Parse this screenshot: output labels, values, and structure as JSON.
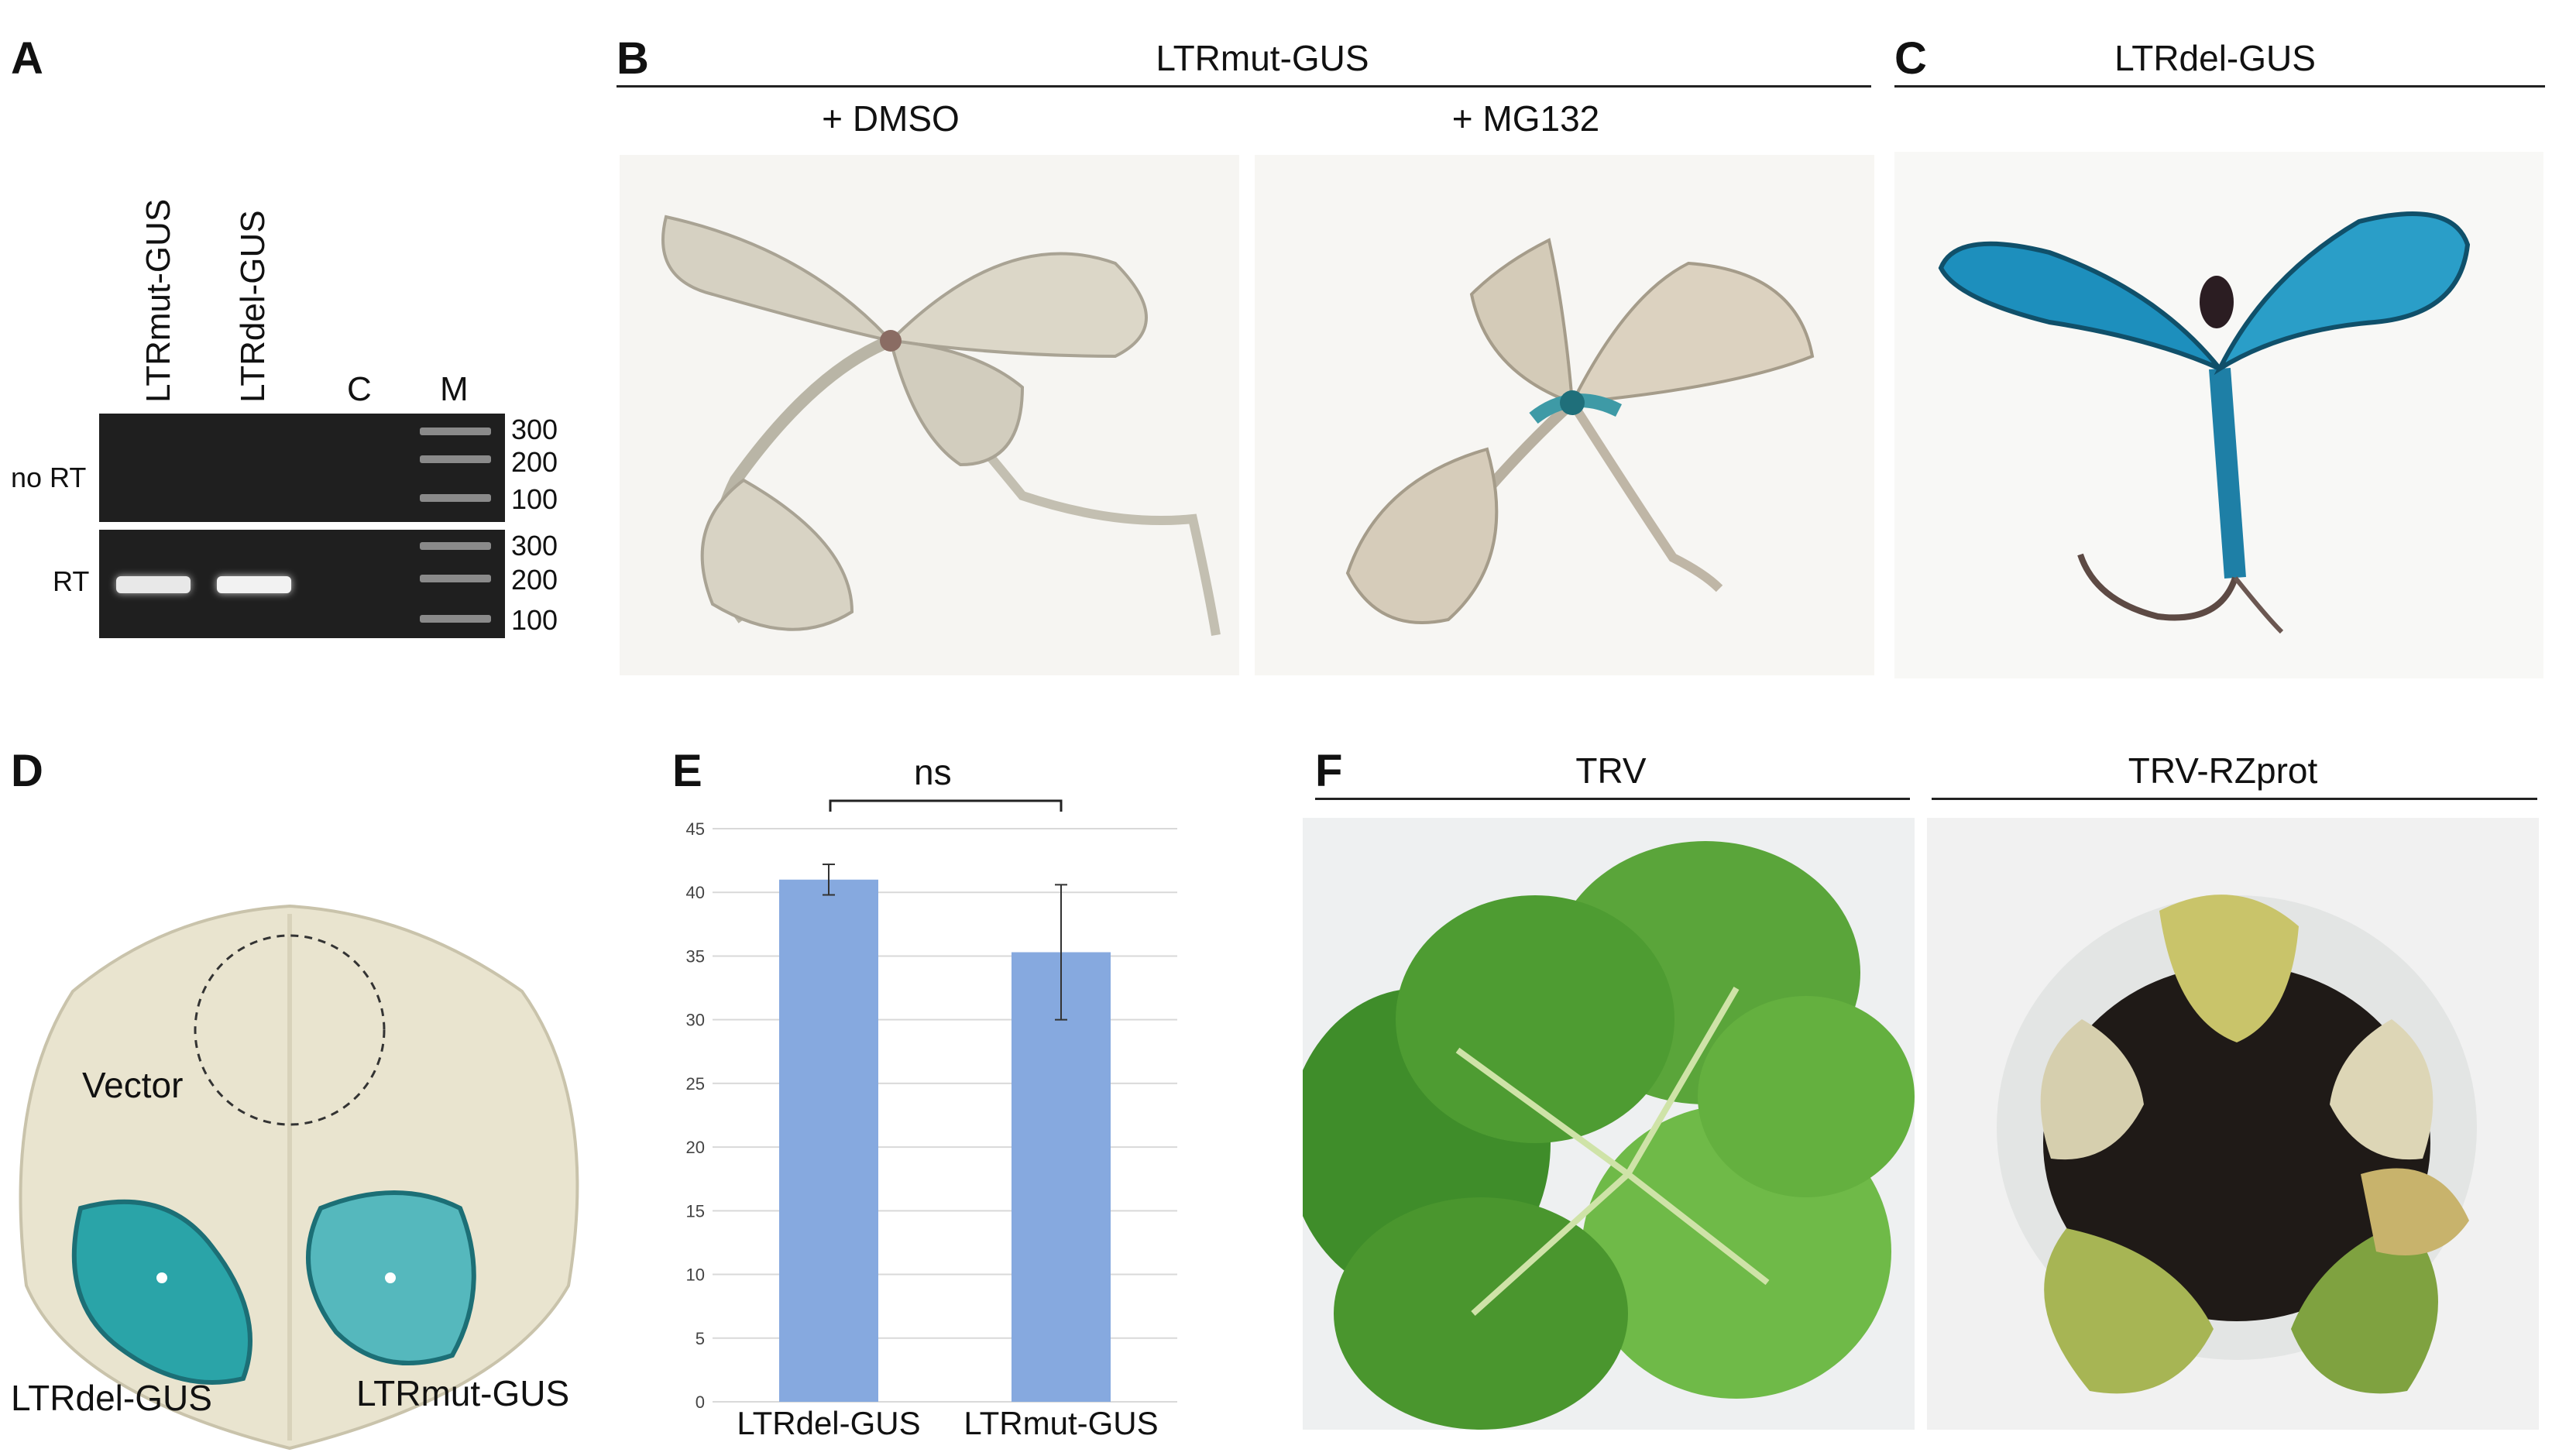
{
  "panels": {
    "A": {
      "letter": "A",
      "lanes": [
        "LTRmut-GUS",
        "LTRdel-GUS",
        "C",
        "M"
      ],
      "rows": [
        "no RT",
        "RT"
      ],
      "ladder_sizes": [
        "300",
        "200",
        "100"
      ]
    },
    "B": {
      "letter": "B",
      "title": "LTRmut-GUS",
      "conditions": [
        "+ DMSO",
        "+ MG132"
      ]
    },
    "C": {
      "letter": "C",
      "title": "LTRdel-GUS"
    },
    "D": {
      "letter": "D",
      "labels": {
        "vector": "Vector",
        "del": "LTRdel-GUS",
        "mut": "LTRmut-GUS"
      }
    },
    "E": {
      "letter": "E",
      "significance": "ns"
    },
    "F": {
      "letter": "F",
      "titles": [
        "TRV",
        "TRV-RZprot"
      ]
    }
  },
  "chart_data": {
    "type": "bar",
    "categories": [
      "LTRdel-GUS",
      "LTRmut-GUS"
    ],
    "values": [
      41,
      35.3
    ],
    "errors": [
      1.2,
      5.3
    ],
    "ylim": [
      0,
      45
    ],
    "yticks": [
      0,
      5,
      10,
      15,
      20,
      25,
      30,
      35,
      40,
      45
    ],
    "grid": true,
    "bar_color": "#86a9df",
    "annotation": "ns"
  }
}
